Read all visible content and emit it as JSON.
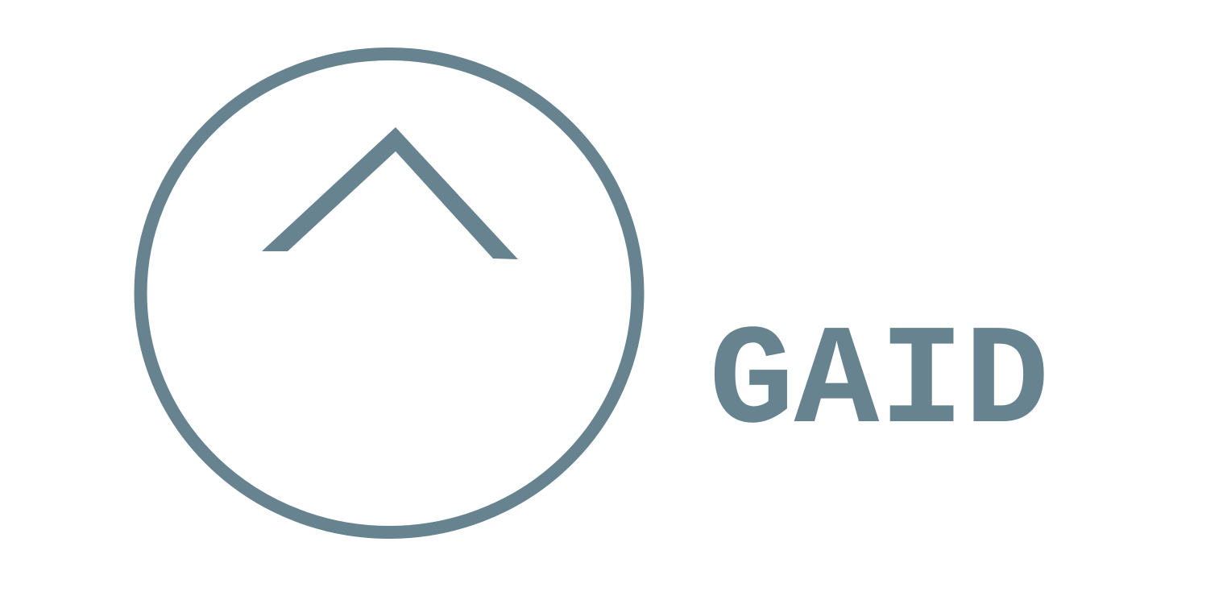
{
  "logo": {
    "wordmark": "GAID",
    "icon": "chevron-up-in-circle-icon",
    "color": "#66838f",
    "background": "#ffffff"
  }
}
